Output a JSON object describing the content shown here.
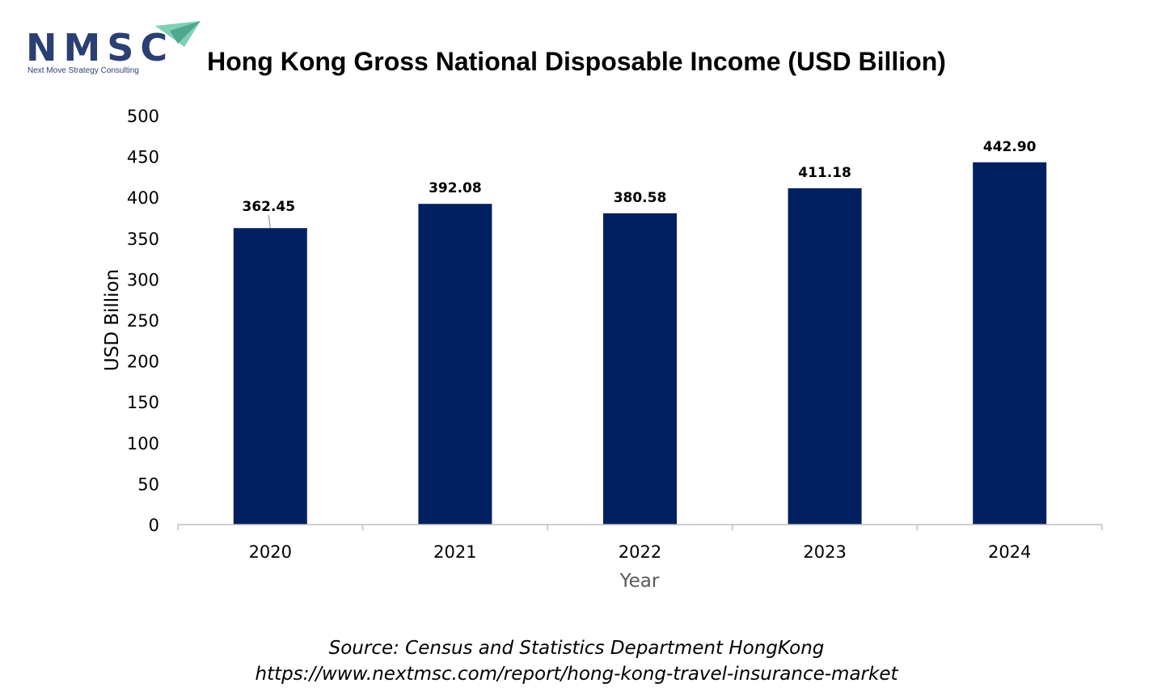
{
  "logo": {
    "mark": "NMSC",
    "tagline": "Next Move Strategy Consulting",
    "accent_color": "#5fb9a0"
  },
  "chart_data": {
    "type": "bar",
    "title": "Hong Kong Gross National Disposable Income (USD Billion)",
    "xlabel": "Year",
    "ylabel": "USD Billion",
    "categories": [
      "2020",
      "2021",
      "2022",
      "2023",
      "2024"
    ],
    "values": [
      362.45,
      392.08,
      380.58,
      411.18,
      442.9
    ],
    "value_labels": [
      "362.45",
      "392.08",
      "380.58",
      "411.18",
      "442.90"
    ],
    "ylim": [
      0,
      500
    ],
    "yticks": [
      "0",
      "50",
      "100",
      "150",
      "200",
      "250",
      "300",
      "350",
      "400",
      "450",
      "500"
    ],
    "bar_color": "#002060",
    "grid": false,
    "legend": "none"
  },
  "source": {
    "line1": "Source: Census and Statistics Department HongKong",
    "line2": "https://www.nextmsc.com/report/hong-kong-travel-insurance-market"
  }
}
